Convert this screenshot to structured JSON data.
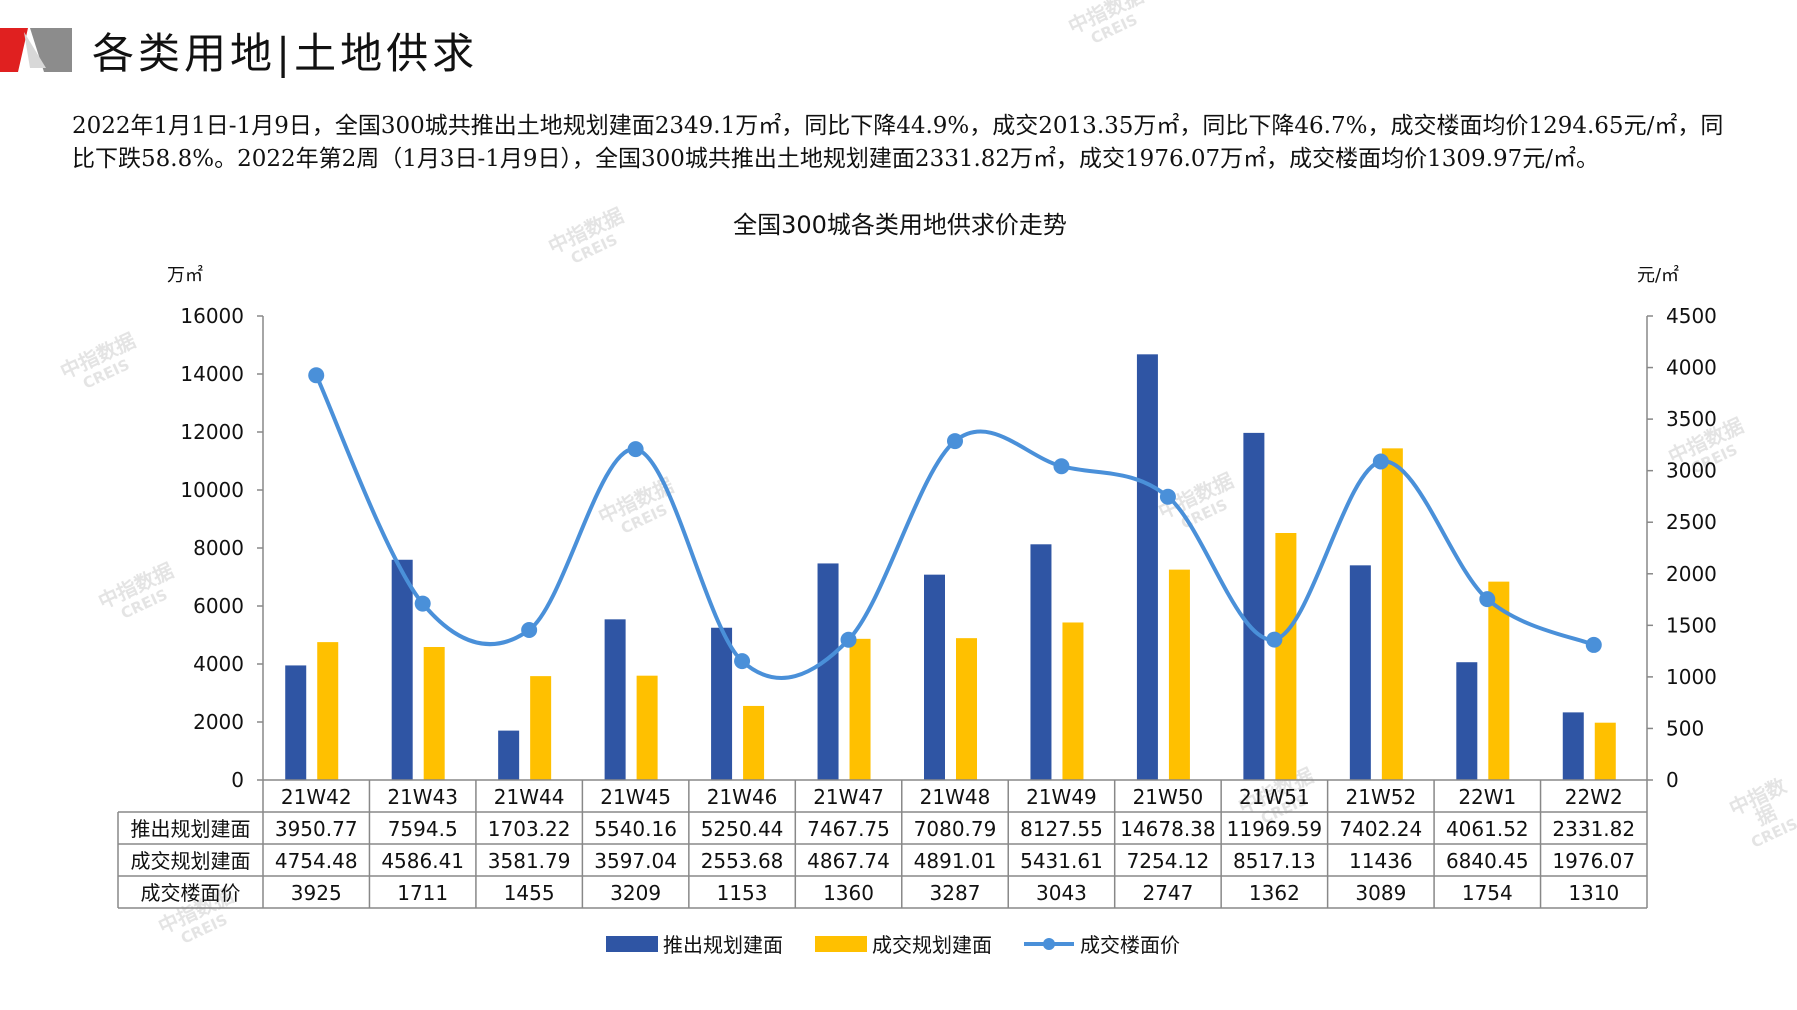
{
  "header": {
    "title": "各类用地|土地供求"
  },
  "summary": "2022年1月1日-1月9日，全国300城共推出土地规划建面2349.1万㎡，同比下降44.9%，成交2013.35万㎡，同比下降46.7%，成交楼面均价1294.65元/㎡，同比下跌58.8%。2022年第2周（1月3日-1月9日），全国300城共推出土地规划建面2331.82万㎡，成交1976.07万㎡，成交楼面均价1309.97元/㎡。",
  "watermark": {
    "brand": "中指数据",
    "sub": "CREIS"
  },
  "colors": {
    "supply": "#2F55A4",
    "deal": "#FFC000",
    "price": "#4A90D9",
    "logo_red": "#E02020"
  },
  "chart_data": {
    "type": "bar",
    "title": "全国300城各类用地供求价走势",
    "left_unit": "万㎡",
    "right_unit": "元/㎡",
    "categories": [
      "21W42",
      "21W43",
      "21W44",
      "21W45",
      "21W46",
      "21W47",
      "21W48",
      "21W49",
      "21W50",
      "21W51",
      "21W52",
      "22W1",
      "22W2"
    ],
    "left_ylim": [
      0,
      16000
    ],
    "left_ticks": [
      0,
      2000,
      4000,
      6000,
      8000,
      10000,
      12000,
      14000,
      16000
    ],
    "right_ylim": [
      0,
      4500
    ],
    "right_ticks": [
      0,
      500,
      1000,
      1500,
      2000,
      2500,
      3000,
      3500,
      4000,
      4500
    ],
    "series": [
      {
        "name": "推出规划建面",
        "type": "bar",
        "axis": "left",
        "color": "#2F55A4",
        "values": [
          3950.77,
          7594.5,
          1703.22,
          5540.16,
          5250.44,
          7467.75,
          7080.79,
          8127.55,
          14678.38,
          11969.59,
          7402.24,
          4061.52,
          2331.82
        ],
        "labels": [
          "3950.77",
          "7594.5",
          "1703.22",
          "5540.16",
          "5250.44",
          "7467.75",
          "7080.79",
          "8127.55",
          "14678.38",
          "11969.59",
          "7402.24",
          "4061.52",
          "2331.82"
        ]
      },
      {
        "name": "成交规划建面",
        "type": "bar",
        "axis": "left",
        "color": "#FFC000",
        "values": [
          4754.48,
          4586.41,
          3581.79,
          3597.04,
          2553.68,
          4867.74,
          4891.01,
          5431.61,
          7254.12,
          8517.13,
          11436,
          6840.45,
          1976.07
        ],
        "labels": [
          "4754.48",
          "4586.41",
          "3581.79",
          "3597.04",
          "2553.68",
          "4867.74",
          "4891.01",
          "5431.61",
          "7254.12",
          "8517.13",
          "11436",
          "6840.45",
          "1976.07"
        ]
      },
      {
        "name": "成交楼面价",
        "type": "line",
        "axis": "right",
        "color": "#4A90D9",
        "values": [
          3925,
          1711,
          1455,
          3209,
          1153,
          1360,
          3287,
          3043,
          2747,
          1362,
          3089,
          1754,
          1310
        ],
        "labels": [
          "3925",
          "1711",
          "1455",
          "3209",
          "1153",
          "1360",
          "3287",
          "3043",
          "2747",
          "1362",
          "3089",
          "1754",
          "1310"
        ]
      }
    ],
    "legend_position": "bottom",
    "grid": false
  }
}
